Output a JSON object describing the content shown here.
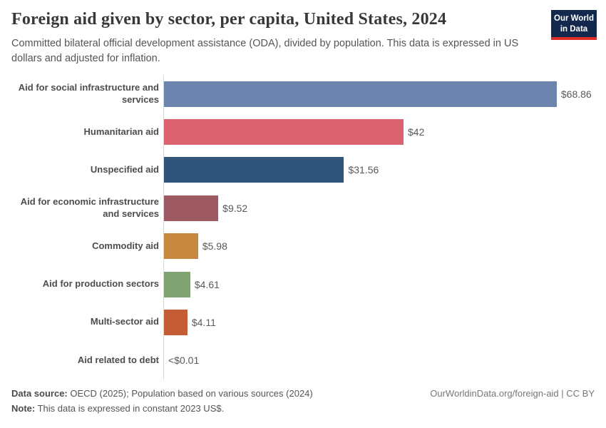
{
  "header": {
    "title": "Foreign aid given by sector, per capita, United States, 2024",
    "subtitle": "Committed bilateral official development assistance (ODA), divided by population. This data is expressed in US dollars and adjusted for inflation.",
    "logo": {
      "line1": "Our World",
      "line2": "in Data",
      "bg_color": "#12294d",
      "accent_color": "#dc2d26"
    }
  },
  "chart_data": {
    "type": "bar",
    "orientation": "horizontal",
    "title": "Foreign aid given by sector, per capita, United States, 2024",
    "categories": [
      "Aid for social infrastructure and services",
      "Humanitarian aid",
      "Unspecified aid",
      "Aid for economic infrastructure and services",
      "Commodity aid",
      "Aid for production sectors",
      "Multi-sector aid",
      "Aid related to debt"
    ],
    "values": [
      68.86,
      42,
      31.56,
      9.52,
      5.98,
      4.61,
      4.11,
      0.005
    ],
    "value_labels": [
      "$68.86",
      "$42",
      "$31.56",
      "$9.52",
      "$5.98",
      "$4.61",
      "$4.11",
      "<$0.01"
    ],
    "bar_colors": [
      "#6c84ae",
      "#dc6271",
      "#31547a",
      "#9e5a63",
      "#c8873f",
      "#80a172",
      "#c45c35",
      "#9a5129"
    ],
    "xlim": [
      0,
      75.5
    ],
    "grid": false,
    "legend": "none",
    "axis_line_color": "#d9d9d9"
  },
  "footer": {
    "data_source_label": "Data source:",
    "data_source_text": "OECD (2025); Population based on various sources (2024)",
    "note_label": "Note:",
    "note_text": "This data is expressed in constant 2023 US$.",
    "attribution": "OurWorldinData.org/foreign-aid | CC BY"
  }
}
